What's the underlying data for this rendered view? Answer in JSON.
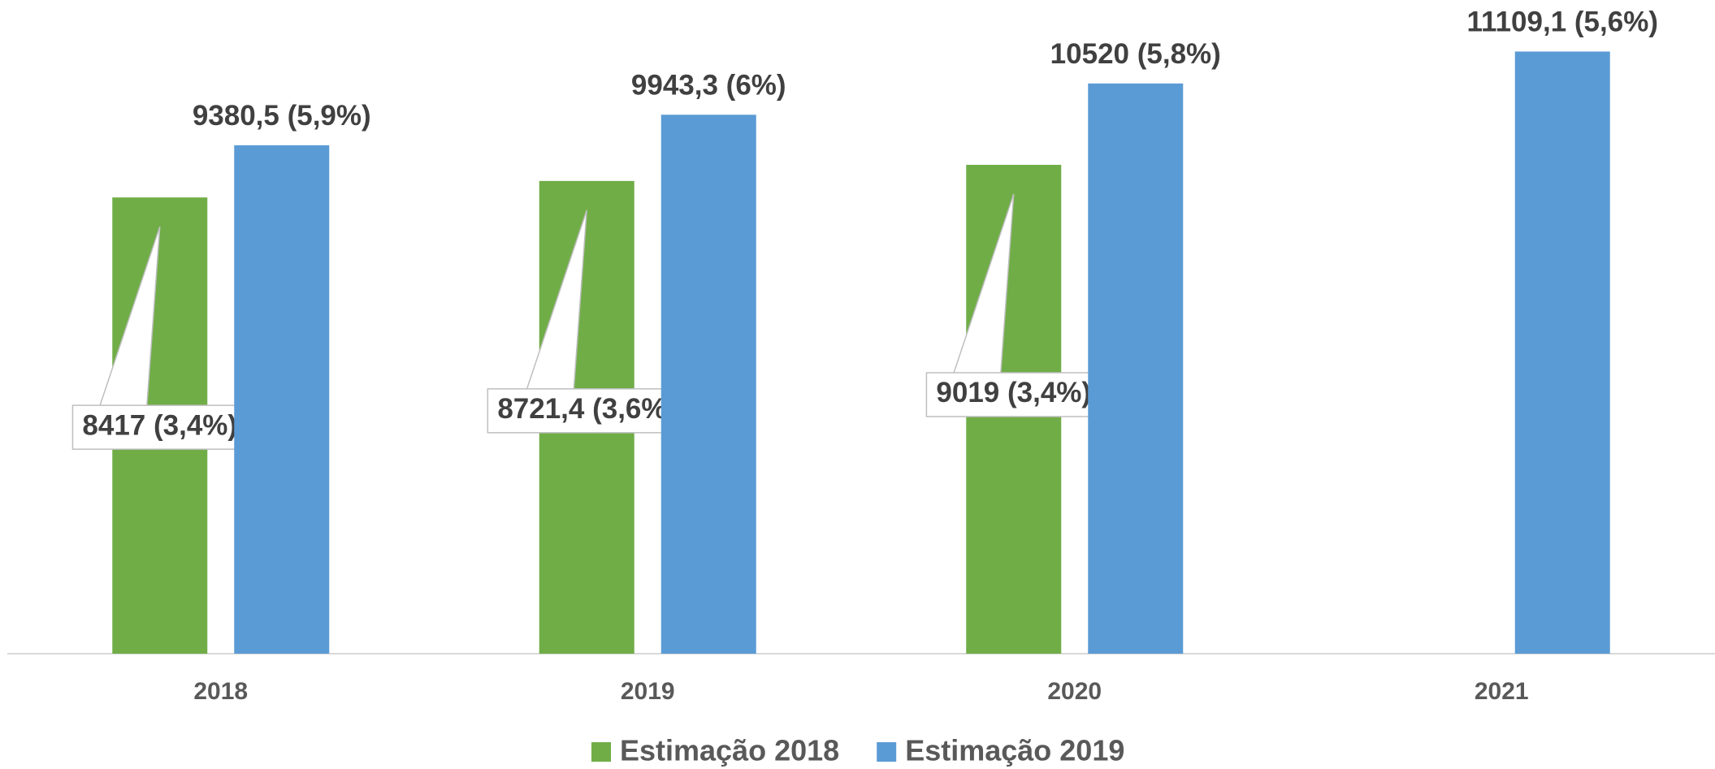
{
  "chart_data": {
    "type": "bar",
    "categories": [
      "2018",
      "2019",
      "2020",
      "2021"
    ],
    "series": [
      {
        "name": "Estimação 2018",
        "color": "#70ad47",
        "values": [
          8417,
          8721.4,
          9019,
          null
        ],
        "value_labels": [
          "8417 (3,4%)",
          "8721,4 (3,6%)",
          "9019 (3,4%)",
          null
        ]
      },
      {
        "name": "Estimação 2019",
        "color": "#5b9bd5",
        "values": [
          9380.5,
          9943.3,
          10520,
          11109.1
        ],
        "value_labels": [
          "9380,5 (5,9%)",
          "9943,3 (6%)",
          "10520 (5,8%)",
          "11109,1 (5,6%)"
        ]
      }
    ],
    "ylim": [
      0,
      12000
    ],
    "grid": false,
    "legend": "bottom"
  }
}
